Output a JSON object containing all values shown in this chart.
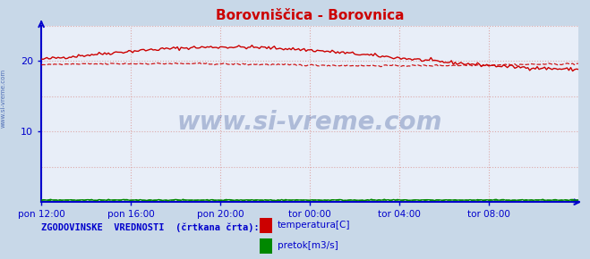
{
  "title": "Borovniščica - Borovnica",
  "title_color": "#cc0000",
  "bg_color": "#e8eef8",
  "plot_bg_color": "#e8eef8",
  "outer_bg_color": "#c8d8e8",
  "xlim": [
    0,
    288
  ],
  "ylim": [
    0,
    25
  ],
  "ytick_positions": [
    0,
    5,
    10,
    15,
    20,
    25
  ],
  "xtick_labels": [
    "pon 12:00",
    "pon 16:00",
    "pon 20:00",
    "tor 00:00",
    "tor 04:00",
    "tor 08:00"
  ],
  "xtick_positions": [
    0,
    48,
    96,
    144,
    192,
    240
  ],
  "grid_color": "#ddaaaa",
  "axis_color": "#0000cc",
  "watermark_text": "www.si-vreme.com",
  "watermark_color": "#1a3a88",
  "watermark_alpha": 0.28,
  "side_text": "www.si-vreme.com",
  "side_color": "#3355aa",
  "legend_title": "ZGODOVINSKE  VREDNOSTI  (črtkana črta):",
  "legend_title_color": "#0000cc",
  "legend_color": "#0000cc",
  "temp_color": "#cc0000",
  "flow_color": "#008800",
  "temp_label": "temperatura[C]",
  "flow_label": "pretok[m3/s]"
}
